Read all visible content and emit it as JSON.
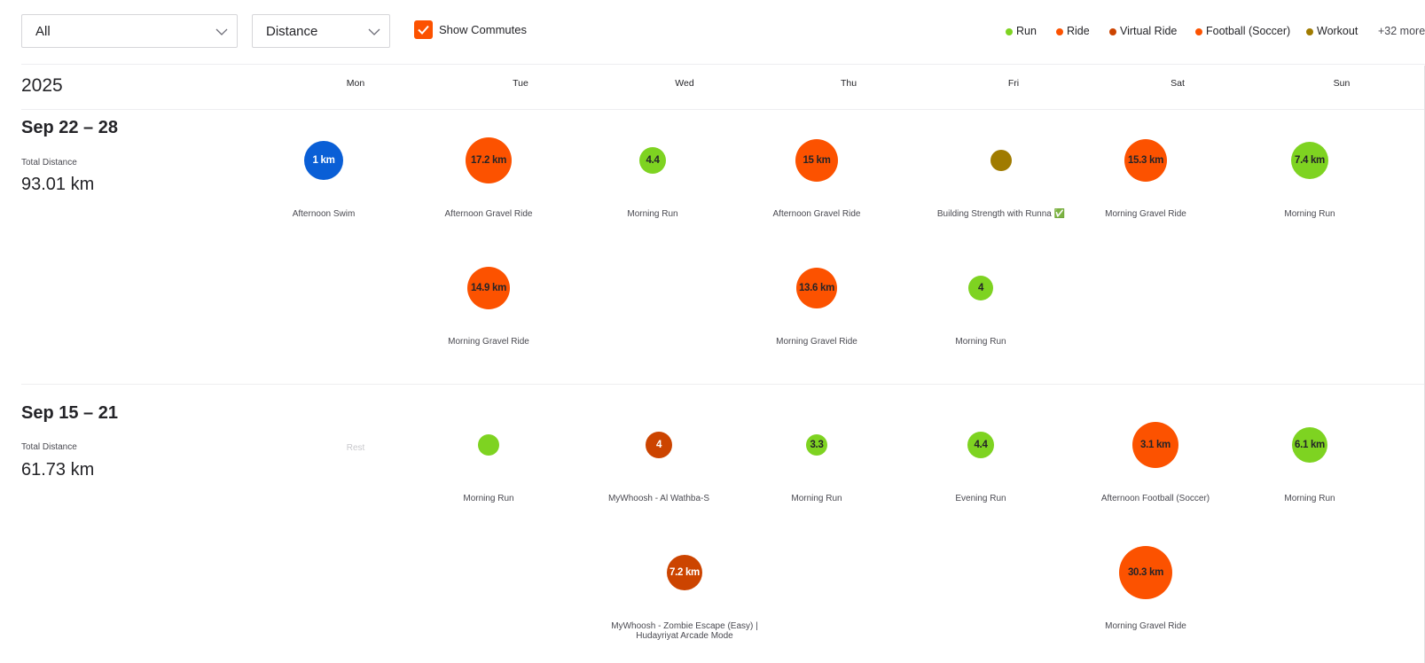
{
  "filters": {
    "sport": "All",
    "metric": "Distance",
    "show_commutes": "Show Commutes"
  },
  "legend": {
    "items": [
      {
        "label": "Run",
        "color": "#7ed321"
      },
      {
        "label": "Ride",
        "color": "#fc5200"
      },
      {
        "label": "Virtual Ride",
        "color": "#cc4400"
      },
      {
        "label": "Football (Soccer)",
        "color": "#fc5200"
      },
      {
        "label": "Workout",
        "color": "#a07b00"
      }
    ],
    "more": "+32 more"
  },
  "colors": {
    "run": "#7ed321",
    "ride": "#fc5200",
    "virtual_ride": "#cc4400",
    "football": "#fc5200",
    "workout": "#a07b00",
    "swim": "#0a5fd6"
  },
  "year": "2025",
  "days": [
    "Mon",
    "Tue",
    "Wed",
    "Thu",
    "Fri",
    "Sat",
    "Sun"
  ],
  "weeks": [
    {
      "title": "Sep 22 – 28",
      "total_label": "Total Distance",
      "total_value": "93.01 km",
      "activities": [
        {
          "name": "Afternoon Swim",
          "value": "1 km",
          "type": "swim",
          "icon": "swim-icon"
        },
        {
          "name": "Afternoon Gravel Ride",
          "value": "17.2 km",
          "type": "ride"
        },
        {
          "name": "Morning Run",
          "value": "4.4",
          "type": "run"
        },
        {
          "name": "Afternoon Gravel Ride",
          "value": "15 km",
          "type": "ride"
        },
        {
          "name": "Building Strength with Runna ✅",
          "value": "",
          "type": "workout"
        },
        {
          "name": "Morning Gravel Ride",
          "value": "15.3 km",
          "type": "ride"
        },
        {
          "name": "Morning Run",
          "value": "7.4 km",
          "type": "run"
        },
        {
          "name": "Morning Gravel Ride",
          "value": "14.9 km",
          "type": "ride"
        },
        {
          "name": "Morning Gravel Ride",
          "value": "13.6 km",
          "type": "ride"
        },
        {
          "name": "Morning Run",
          "value": "4",
          "type": "run"
        }
      ]
    },
    {
      "title": "Sep 15 – 21",
      "total_label": "Total Distance",
      "total_value": "61.73 km",
      "rest_label": "Rest",
      "activities": [
        {
          "name": "Morning Run",
          "value": "",
          "type": "run"
        },
        {
          "name": "MyWhoosh - Al Wathba-S",
          "value": "4",
          "type": "virtual_ride"
        },
        {
          "name": "Morning Run",
          "value": "3.3",
          "type": "run"
        },
        {
          "name": "Evening Run",
          "value": "4.4",
          "type": "run"
        },
        {
          "name": "Afternoon Football (Soccer)",
          "value": "3.1 km",
          "type": "football"
        },
        {
          "name": "Morning Run",
          "value": "6.1 km",
          "type": "run"
        },
        {
          "name": "MyWhoosh - Zombie Escape (Easy) |\nHudayriyat Arcade Mode",
          "value": "7.2 km",
          "type": "virtual_ride"
        },
        {
          "name": "Morning Gravel Ride",
          "value": "30.3 km",
          "type": "ride"
        }
      ]
    }
  ]
}
